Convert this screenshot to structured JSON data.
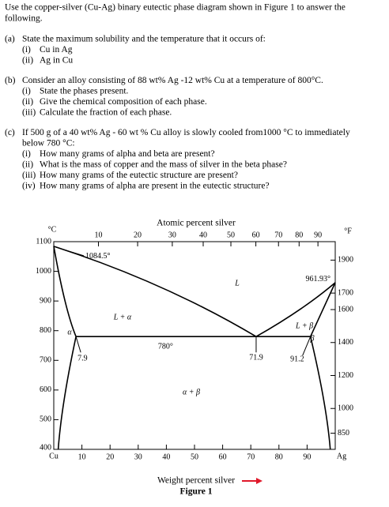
{
  "intro": [
    "Use the copper-silver (Cu-Ag) binary eutectic phase diagram shown in Figure 1 to answer the",
    "following."
  ],
  "questions": [
    {
      "label": "(a)",
      "lines": [
        "State the maximum solubility and the temperature that it occurs of:"
      ],
      "parts": [
        {
          "label": "(i)",
          "text": "Cu in Ag"
        },
        {
          "label": "(ii)",
          "text": "Ag in Cu"
        }
      ]
    },
    {
      "label": "(b)",
      "lines": [
        "Consider an alloy consisting of 88 wt% Ag -12 wt% Cu at a temperature of 800°C."
      ],
      "parts": [
        {
          "label": "(i)",
          "text": "State the phases present."
        },
        {
          "label": "(ii)",
          "text": "Give the chemical composition of each phase."
        },
        {
          "label": "(iii)",
          "text": "Calculate the fraction of each phase."
        }
      ]
    },
    {
      "label": "(c)",
      "lines": [
        "If 500 g of a 40 wt% Ag - 60 wt % Cu alloy is slowly cooled from1000 °C to immediately",
        "below 780 °C:"
      ],
      "parts": [
        {
          "label": "(i)",
          "text": "How many grams of alpha and beta are present?"
        },
        {
          "label": "(ii)",
          "text": "What is the mass of copper and the mass of silver in the beta phase?"
        },
        {
          "label": "(iii)",
          "text": "How many grams of the eutectic structure are present?"
        },
        {
          "label": "(iv)",
          "text": "How many grams of alpha are present in the eutectic structure?"
        }
      ]
    }
  ],
  "figure": {
    "top_axis_label": "Atomic percent silver",
    "bottom_axis_label": "Weight percent silver",
    "caption": "Figure 1",
    "left_unit": "°C",
    "right_unit": "°F",
    "left_end": "Cu",
    "right_end": "Ag",
    "xlim": [
      0,
      100
    ],
    "ylim": [
      400,
      1100
    ],
    "xticks": [
      10,
      20,
      30,
      40,
      50,
      60,
      70,
      80,
      90
    ],
    "yticks": [
      400,
      500,
      600,
      700,
      800,
      900,
      1000,
      1100
    ],
    "top_ticks": [
      10,
      20,
      30,
      40,
      50,
      60,
      70,
      80,
      90
    ],
    "right_ticks": [
      850,
      1000,
      1200,
      1400,
      1600,
      1700,
      1900
    ],
    "points": {
      "cu_melt": {
        "value": 1084.5,
        "label": "1084.5°"
      },
      "ag_melt": {
        "value": 961.93,
        "label": "961.93°"
      },
      "eutectic_temperature": {
        "value": 780,
        "label": "780°"
      },
      "alpha_max": {
        "value": 7.9,
        "label": "7.9"
      },
      "eutectic_composition": {
        "value": 71.9,
        "label": "71.9"
      },
      "beta_max": {
        "value": 91.2,
        "label": "91.2"
      }
    },
    "regions": [
      "L",
      "L + α",
      "α",
      "β",
      "L + β",
      "α + β"
    ]
  }
}
